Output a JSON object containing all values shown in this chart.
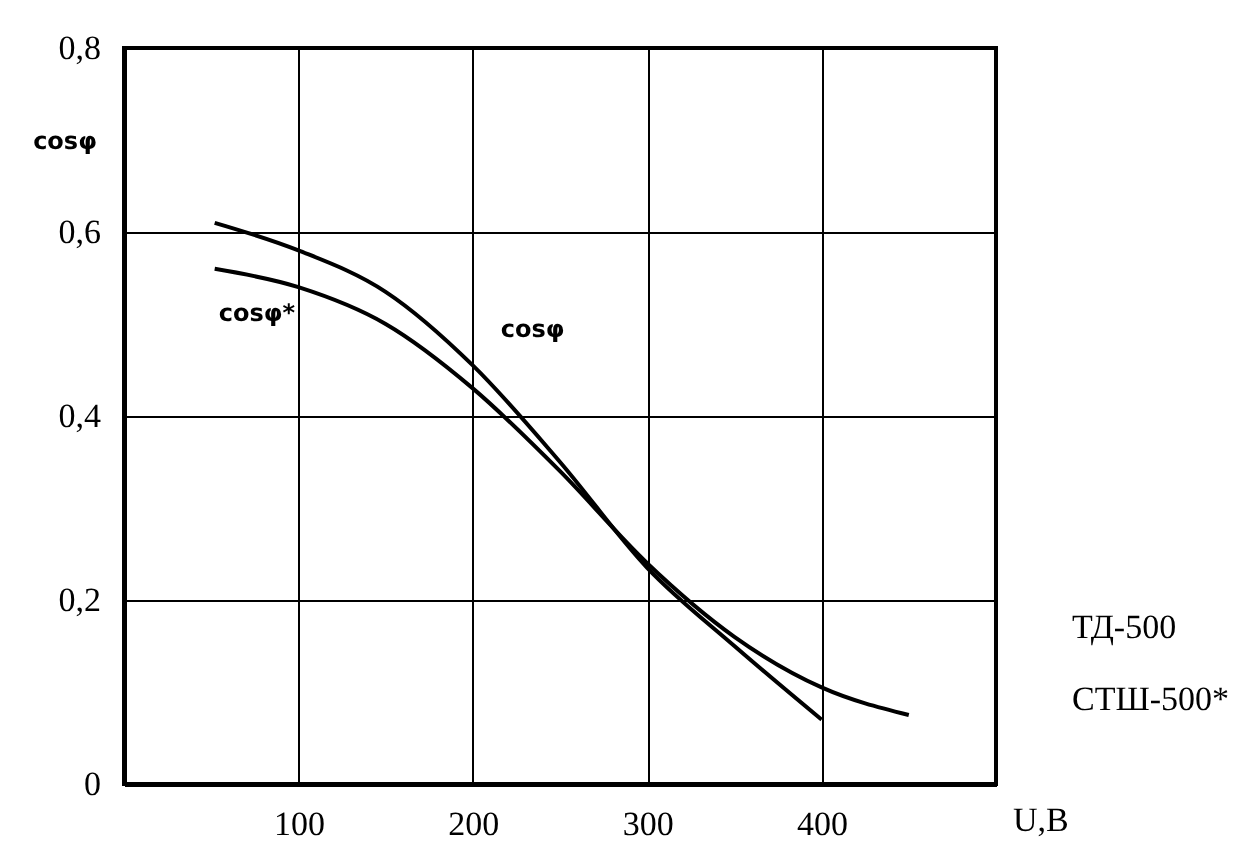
{
  "chart_data": {
    "type": "line",
    "xlabel": "U,B",
    "ylabel": "cosφ",
    "xlim": [
      0,
      500
    ],
    "xticks": [
      100,
      200,
      300,
      400
    ],
    "ylim": [
      0,
      0.8
    ],
    "yticks": [
      0,
      {
        "value": 0.2,
        "label": "0,2"
      },
      {
        "value": 0.4,
        "label": "0,4"
      },
      {
        "value": 0.6,
        "label": "0,6"
      },
      {
        "value": 0.8,
        "label": "0,8"
      }
    ],
    "grid": true,
    "line_style": "solid",
    "series": [
      {
        "name": "cosφ",
        "color": "#000000",
        "x": [
          52,
          100,
          150,
          200,
          250,
          300,
          350,
          400
        ],
        "values": [
          0.61,
          0.58,
          0.535,
          0.455,
          0.35,
          0.235,
          0.15,
          0.07
        ]
      },
      {
        "name": "cosφ*",
        "color": "#000000",
        "x": [
          52,
          100,
          150,
          200,
          250,
          300,
          350,
          400,
          450
        ],
        "values": [
          0.56,
          0.54,
          0.5,
          0.43,
          0.34,
          0.24,
          0.16,
          0.105,
          0.075
        ]
      }
    ],
    "annotations": [
      "ТД-500",
      "СТШ-500*"
    ]
  }
}
